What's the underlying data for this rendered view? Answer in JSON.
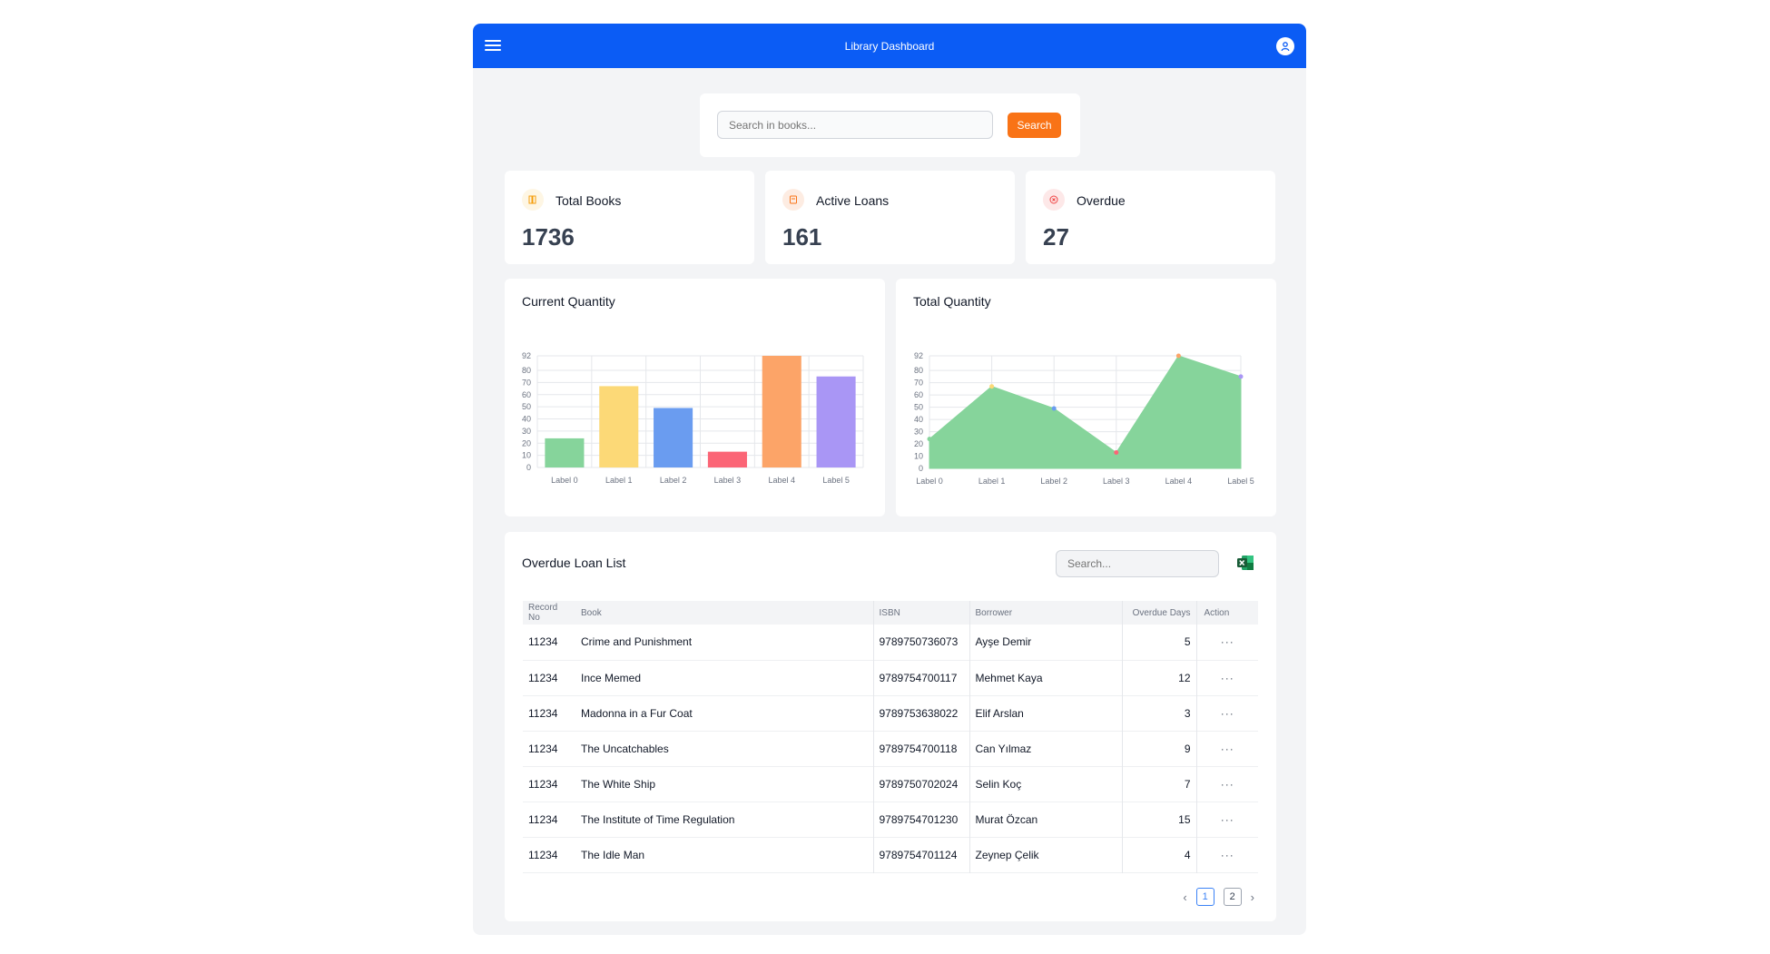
{
  "header": {
    "title": "Library Dashboard"
  },
  "search": {
    "placeholder": "Search in books...",
    "button_label": "Search"
  },
  "stats": [
    {
      "label": "Total Books",
      "value": "1736",
      "icon": "book-icon",
      "color": "#f59e0b"
    },
    {
      "label": "Active Loans",
      "value": "161",
      "icon": "loan-icon",
      "color": "#f97316"
    },
    {
      "label": "Overdue",
      "value": "27",
      "icon": "overdue-icon",
      "color": "#ef4444"
    }
  ],
  "chart_data": [
    {
      "type": "bar",
      "title": "Current Quantity",
      "categories": [
        "Label 0",
        "Label 1",
        "Label 2",
        "Label 3",
        "Label 4",
        "Label 5"
      ],
      "values": [
        24,
        67,
        49,
        13,
        92,
        75
      ],
      "colors": [
        "#86d49b",
        "#fcd977",
        "#6a9cf0",
        "#fb6576",
        "#fca468",
        "#a996f5"
      ],
      "yticks": [
        0,
        10,
        20,
        30,
        40,
        50,
        60,
        70,
        80,
        92
      ],
      "ylim": [
        0,
        92
      ],
      "grid": true
    },
    {
      "type": "area",
      "title": "Total Quantity",
      "categories": [
        "Label 0",
        "Label 1",
        "Label 2",
        "Label 3",
        "Label 4",
        "Label 5"
      ],
      "values": [
        24,
        67,
        49,
        13,
        92,
        75
      ],
      "fill": "#86d49b",
      "point_colors": [
        "#86d49b",
        "#fcd977",
        "#6a9cf0",
        "#fb6576",
        "#fca468",
        "#a996f5"
      ],
      "yticks": [
        0,
        10,
        20,
        30,
        40,
        50,
        60,
        70,
        80,
        92
      ],
      "ylim": [
        0,
        92
      ],
      "grid": true
    }
  ],
  "overdue": {
    "title": "Overdue Loan List",
    "search_placeholder": "Search...",
    "columns": [
      "Record No",
      "Book",
      "ISBN",
      "Borrower",
      "Overdue Days",
      "Action"
    ],
    "rows": [
      {
        "record": "11234",
        "book": "Crime and Punishment",
        "isbn": "9789750736073",
        "borrower": "Ayşe Demir",
        "days": "5",
        "action": "···"
      },
      {
        "record": "11234",
        "book": "Ince Memed",
        "isbn": "9789754700117",
        "borrower": "Mehmet Kaya",
        "days": "12",
        "action": "···"
      },
      {
        "record": "11234",
        "book": "Madonna in a Fur Coat",
        "isbn": "9789753638022",
        "borrower": "Elif Arslan",
        "days": "3",
        "action": "···"
      },
      {
        "record": "11234",
        "book": "The Uncatchables",
        "isbn": "9789754700118",
        "borrower": "Can Yılmaz",
        "days": "9",
        "action": "···"
      },
      {
        "record": "11234",
        "book": "The White Ship",
        "isbn": "9789750702024",
        "borrower": "Selin Koç",
        "days": "7",
        "action": "···"
      },
      {
        "record": "11234",
        "book": "The Institute of Time Regulation",
        "isbn": "9789754701230",
        "borrower": "Murat Özcan",
        "days": "15",
        "action": "···"
      },
      {
        "record": "11234",
        "book": "The Idle Man",
        "isbn": "9789754701124",
        "borrower": "Zeynep Çelik",
        "days": "4",
        "action": "···"
      }
    ],
    "pages": [
      "1",
      "2"
    ],
    "current_page": "1",
    "prev_label": "‹",
    "next_label": "›"
  }
}
